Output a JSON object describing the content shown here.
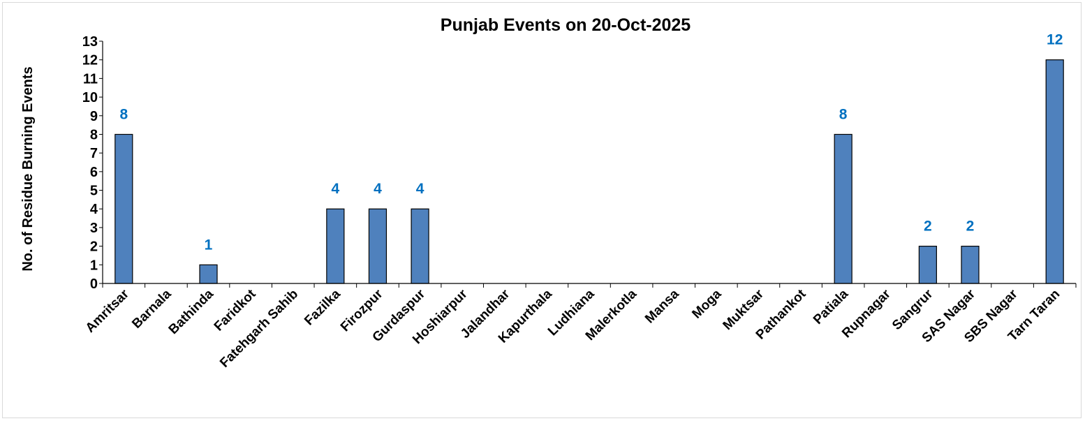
{
  "chart_data": {
    "type": "bar",
    "title": "Punjab Events on 20-Oct-2025",
    "xlabel": "",
    "ylabel": "No. of Residue Burning Events",
    "ylim": [
      0,
      13
    ],
    "yticks": [
      0,
      1,
      2,
      3,
      4,
      5,
      6,
      7,
      8,
      9,
      10,
      11,
      12,
      13
    ],
    "categories": [
      "Amritsar",
      "Barnala",
      "Bathinda",
      "Faridkot",
      "Fatehgarh Sahib",
      "Fazilka",
      "Firozpur",
      "Gurdaspur",
      "Hoshiarpur",
      "Jalandhar",
      "Kapurthala",
      "Ludhiana",
      "Malerkotla",
      "Mansa",
      "Moga",
      "Muktsar",
      "Pathankot",
      "Patiala",
      "Rupnagar",
      "Sangrur",
      "SAS Nagar",
      "SBS Nagar",
      "Tarn Taran"
    ],
    "values": [
      8,
      0,
      1,
      0,
      0,
      4,
      4,
      4,
      0,
      0,
      0,
      0,
      0,
      0,
      0,
      0,
      0,
      8,
      0,
      2,
      2,
      0,
      12
    ],
    "grid": false,
    "legend": "none",
    "colors": {
      "bar": "#4f81bd",
      "bar_border": "#000000",
      "data_label": "#0070c0",
      "axis": "#000000"
    }
  }
}
